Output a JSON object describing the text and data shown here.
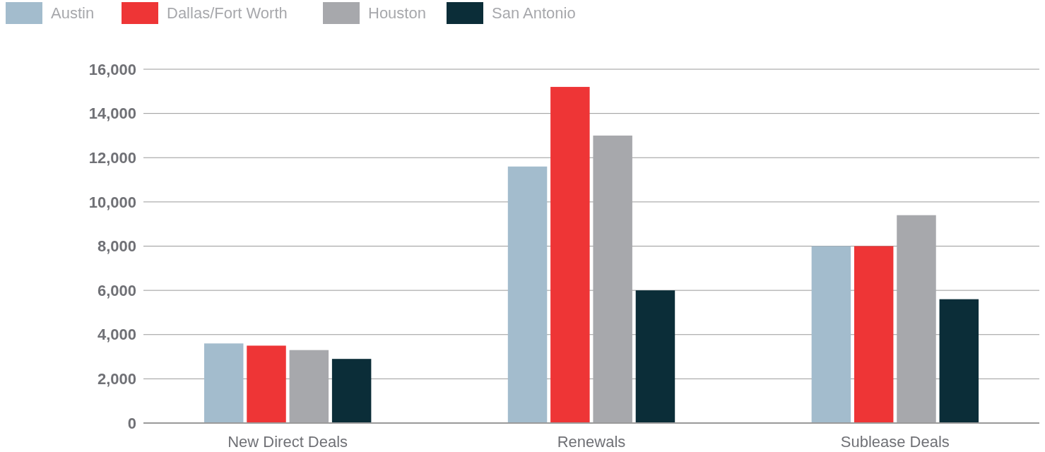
{
  "chart_data": {
    "type": "bar",
    "categories": [
      "New Direct Deals",
      "Renewals",
      "Sublease Deals"
    ],
    "series": [
      {
        "name": "Austin",
        "color": "#a3bccd",
        "values": [
          3600,
          11600,
          8000
        ]
      },
      {
        "name": "Dallas/Fort Worth",
        "color": "#ee3536",
        "values": [
          3500,
          15200,
          8000
        ]
      },
      {
        "name": "Houston",
        "color": "#a7a8ac",
        "values": [
          3300,
          13000,
          9400
        ]
      },
      {
        "name": "San Antonio",
        "color": "#0b2d38",
        "values": [
          2900,
          6000,
          5600
        ]
      }
    ],
    "ylim": [
      0,
      16000
    ],
    "yticks": [
      {
        "value": 0,
        "label": "0"
      },
      {
        "value": 2000,
        "label": "2,000"
      },
      {
        "value": 4000,
        "label": "4,000"
      },
      {
        "value": 6000,
        "label": "6,000"
      },
      {
        "value": 8000,
        "label": "8,000"
      },
      {
        "value": 10000,
        "label": "10,000"
      },
      {
        "value": 12000,
        "label": "12,000"
      },
      {
        "value": 14000,
        "label": "14,000"
      },
      {
        "value": 16000,
        "label": "16,000"
      }
    ],
    "grid": "y",
    "legend": "top left"
  }
}
